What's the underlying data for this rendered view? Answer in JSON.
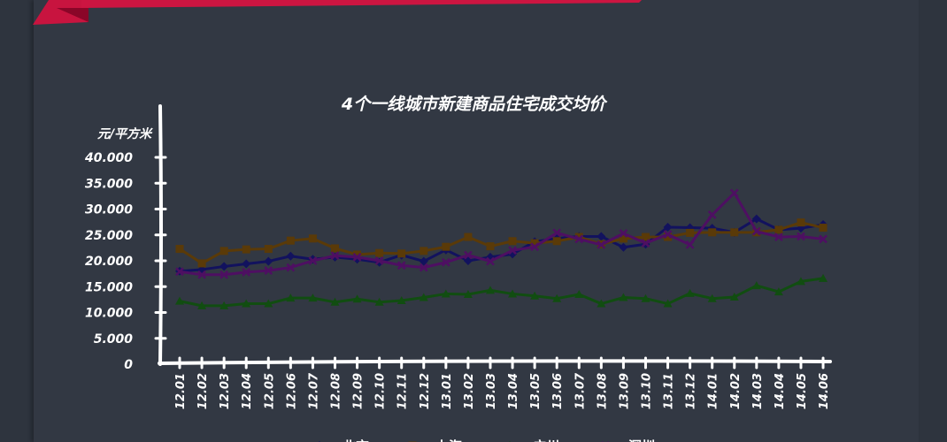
{
  "chart_data": {
    "type": "line",
    "title": "4个一线城市新建商品住宅成交均价",
    "ylabel": "元/平方米",
    "xlabel": "",
    "ylim": [
      0,
      40000
    ],
    "y_ticks": [
      "0",
      "5.000",
      "10.000",
      "15.000",
      "20.000",
      "25.000",
      "30.000",
      "35.000",
      "40.000"
    ],
    "grid": false,
    "legend_position": "bottom",
    "categories": [
      "12.01",
      "12.02",
      "12.03",
      "12.04",
      "12.05",
      "12.06",
      "12.07",
      "12.08",
      "12.09",
      "12.10",
      "12.11",
      "12.12",
      "13.01",
      "13.02",
      "13.03",
      "13.04",
      "13.05",
      "13.06",
      "13.07",
      "13.08",
      "13.09",
      "13.10",
      "13.11",
      "13.12",
      "14.01",
      "14.02",
      "14.03",
      "14.04",
      "14.05",
      "14.06"
    ],
    "series": [
      {
        "name": "北京",
        "color": "#12125e",
        "marker": "diamond",
        "values": [
          18000,
          18300,
          18900,
          19400,
          19900,
          20900,
          20300,
          20700,
          20300,
          19700,
          21100,
          19900,
          22100,
          20000,
          20700,
          21300,
          23700,
          24300,
          24700,
          24700,
          22600,
          23200,
          26500,
          26400,
          26300,
          25500,
          28100,
          26000,
          26300,
          27000
        ]
      },
      {
        "name": "上海",
        "color": "#5a3a08",
        "marker": "square",
        "values": [
          22300,
          19500,
          21900,
          22200,
          22300,
          23900,
          24300,
          22400,
          21200,
          21500,
          21400,
          21900,
          22700,
          24600,
          22800,
          23800,
          23400,
          23800,
          24600,
          23200,
          24300,
          24600,
          24600,
          25400,
          25500,
          25500,
          25500,
          26000,
          27400,
          26400
        ]
      },
      {
        "name": "广州",
        "color": "#114d11",
        "marker": "triangle",
        "values": [
          12200,
          11300,
          11300,
          11700,
          11700,
          12800,
          12800,
          12000,
          12600,
          12000,
          12300,
          12900,
          13600,
          13500,
          14300,
          13600,
          13200,
          12700,
          13500,
          11700,
          12900,
          12700,
          11700,
          13700,
          12700,
          13000,
          15200,
          14000,
          16000,
          16600
        ]
      },
      {
        "name": "深圳",
        "color": "#4e0f62",
        "marker": "x",
        "values": [
          17900,
          17300,
          17300,
          17800,
          18100,
          18700,
          20000,
          21000,
          20700,
          20000,
          19100,
          18700,
          19700,
          21100,
          19900,
          22000,
          22700,
          25400,
          24200,
          23100,
          25300,
          23400,
          25100,
          23100,
          28900,
          33100,
          25700,
          24600,
          24700,
          24200
        ]
      }
    ]
  }
}
